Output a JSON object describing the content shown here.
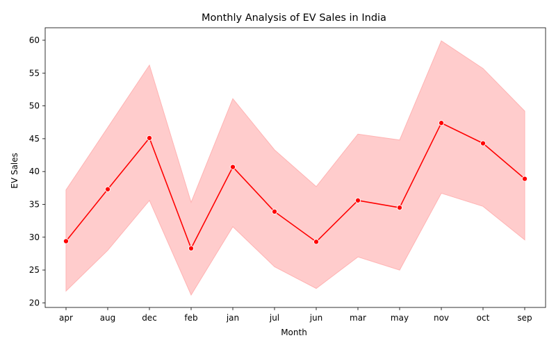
{
  "chart_data": {
    "type": "line",
    "title": "Monthly Analysis of EV Sales in India",
    "xlabel": "Month",
    "ylabel": "EV Sales",
    "categories": [
      "apr",
      "aug",
      "dec",
      "feb",
      "jan",
      "jul",
      "jun",
      "mar",
      "may",
      "nov",
      "oct",
      "sep"
    ],
    "series": [
      {
        "values": [
          29.4,
          37.3,
          45.1,
          28.3,
          40.7,
          33.9,
          29.3,
          35.6,
          34.5,
          47.4,
          44.3,
          38.9
        ],
        "lower": [
          21.8,
          28.0,
          35.6,
          21.2,
          31.6,
          25.5,
          22.2,
          27.0,
          25.0,
          36.7,
          34.7,
          29.6
        ],
        "upper": [
          37.2,
          46.7,
          56.2,
          35.3,
          51.1,
          43.3,
          37.7,
          45.7,
          44.8,
          59.9,
          55.7,
          49.2
        ],
        "color": "#ff0000",
        "band_color": "#ffcccc",
        "band_edge_color": "#ffb3b3",
        "marker": "circle"
      }
    ],
    "ylim": [
      19.3,
      61.9
    ],
    "yticks": [
      20,
      25,
      30,
      35,
      40,
      45,
      50,
      55,
      60
    ],
    "grid": false
  }
}
